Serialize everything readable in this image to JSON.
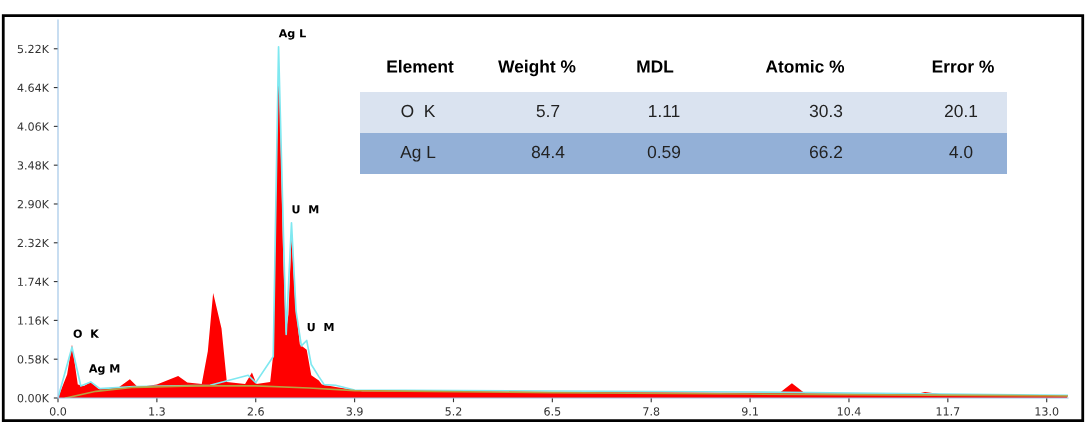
{
  "chart_data": [
    {
      "type": "area",
      "xlim": [
        0,
        13.28
      ],
      "ylim": [
        0,
        5650
      ],
      "xticks": [
        {
          "value": 0,
          "label": "0.0"
        },
        1.3,
        2.6,
        3.9,
        5.2,
        6.5,
        7.8,
        9.1,
        10.4,
        11.7,
        {
          "value": 13,
          "label": "13.0"
        }
      ],
      "yticks": [
        {
          "value": 0,
          "label": "0.00K"
        },
        {
          "value": 580,
          "label": "0.58K"
        },
        {
          "value": 1160,
          "label": "1.16K"
        },
        {
          "value": 1740,
          "label": "1.74K"
        },
        {
          "value": 2320,
          "label": "2.32K"
        },
        {
          "value": 2900,
          "label": "2.90K"
        },
        {
          "value": 3480,
          "label": "3.48K"
        },
        {
          "value": 4060,
          "label": "4.06K"
        },
        {
          "value": 4640,
          "label": "4.64K"
        },
        {
          "value": 5220,
          "label": "5.22K"
        }
      ],
      "grid": false,
      "legend": false,
      "series": [
        {
          "type": "area",
          "color": "#ff0000",
          "x": [
            0,
            0.04,
            0.12,
            0.184,
            0.26,
            0.34,
            0.43,
            0.53,
            0.8,
            0.945,
            1.05,
            1.3,
            1.58,
            1.7,
            1.89,
            1.97,
            2.04,
            2.15,
            2.22,
            2.46,
            2.55,
            2.61,
            2.79,
            2.83,
            2.9,
            2.96,
            2.995,
            3.03,
            3.07,
            3.12,
            3.18,
            3.27,
            3.33,
            3.43,
            3.47,
            3.67,
            4.0,
            6.5,
            9.1,
            9.49,
            9.65,
            9.82,
            11.29,
            11.4,
            11.66,
            13.27
          ],
          "values": [
            0,
            120,
            350,
            800,
            200,
            180,
            240,
            140,
            160,
            280,
            160,
            200,
            330,
            230,
            210,
            700,
            1570,
            1040,
            240,
            210,
            380,
            210,
            240,
            650,
            5180,
            2150,
            970,
            1250,
            2420,
            1400,
            800,
            720,
            340,
            260,
            200,
            160,
            100,
            90,
            80,
            80,
            220,
            70,
            60,
            90,
            50,
            30
          ]
        },
        {
          "type": "line",
          "color": "#7fe8f0",
          "x": [
            0,
            0.184,
            0.3,
            0.43,
            0.55,
            1.0,
            2.0,
            2.5,
            2.6,
            2.83,
            2.9,
            2.97,
            3.0,
            3.07,
            3.13,
            3.2,
            3.27,
            3.33,
            3.43,
            3.5,
            3.65,
            3.9,
            9.1,
            13.27
          ],
          "values": [
            0,
            760,
            180,
            240,
            140,
            170,
            190,
            340,
            230,
            620,
            5250,
            2200,
            950,
            2620,
            1300,
            780,
            860,
            500,
            320,
            200,
            190,
            120,
            90,
            40
          ]
        },
        {
          "type": "line",
          "color": "#b8a040",
          "x": [
            0.1,
            0.5,
            1.0,
            1.8,
            2.6,
            3.3,
            3.9,
            6.5,
            9.1,
            13.27
          ],
          "values": [
            0,
            100,
            160,
            180,
            180,
            150,
            110,
            80,
            60,
            30
          ]
        }
      ],
      "annotations": [
        {
          "text": "Ag L",
          "x": 2.9,
          "y": 5250
        },
        {
          "text": "U  M",
          "x": 3.07,
          "y": 2620
        },
        {
          "text": "U  M",
          "x": 3.27,
          "y": 860
        },
        {
          "text": "O  K",
          "x": 0.184,
          "y": 760
        },
        {
          "text": "Ag M",
          "x": 0.43,
          "y": 240
        }
      ]
    },
    {
      "type": "other",
      "categories": [
        "Element",
        "Weight %",
        "MDL",
        "Atomic %",
        "Error %"
      ],
      "colors": [
        "#dae3f0",
        "#93b0d7"
      ],
      "annotations": [
        "O  K",
        "5.7",
        "1.11",
        "30.3",
        "20.1",
        "Ag L",
        "84.4",
        "0.59",
        "66.2",
        "4.0"
      ]
    }
  ]
}
